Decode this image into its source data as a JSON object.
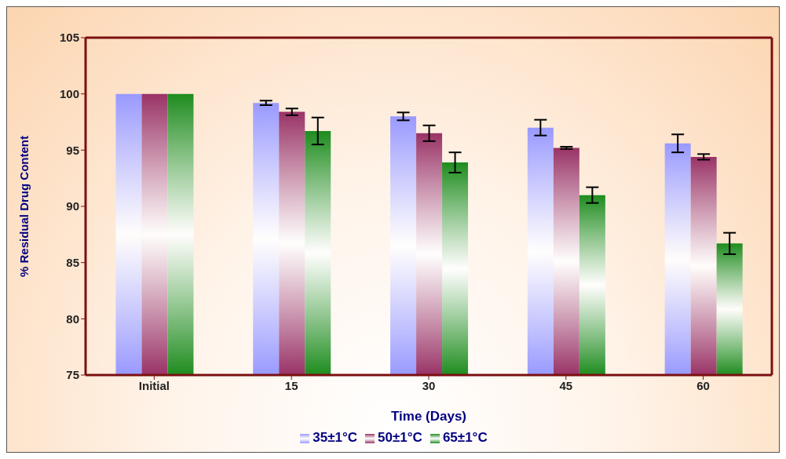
{
  "chart_data": {
    "type": "bar",
    "xlabel": "Time (Days)",
    "ylabel": "% Residual Drug Content",
    "categories": [
      "Initial",
      "15",
      "30",
      "45",
      "60"
    ],
    "series": [
      {
        "name": "35±1°C",
        "color": "#9999ff",
        "values": [
          100,
          99.2,
          98.0,
          97.0,
          95.6
        ],
        "errors": [
          0,
          0.2,
          0.35,
          0.7,
          0.8
        ]
      },
      {
        "name": "50±1°C",
        "color": "#993366",
        "values": [
          100,
          98.4,
          96.5,
          95.2,
          94.4
        ],
        "errors": [
          0,
          0.3,
          0.7,
          0.1,
          0.25
        ]
      },
      {
        "name": "65±1°C",
        "color": "#1e8c1e",
        "values": [
          100,
          96.7,
          93.9,
          91.0,
          86.7
        ],
        "errors": [
          0,
          1.2,
          0.9,
          0.7,
          0.95
        ]
      }
    ],
    "ylim": [
      75,
      105
    ],
    "yticks": [
      75,
      80,
      85,
      90,
      95,
      100,
      105
    ],
    "grid": false,
    "legend": "bottom"
  }
}
